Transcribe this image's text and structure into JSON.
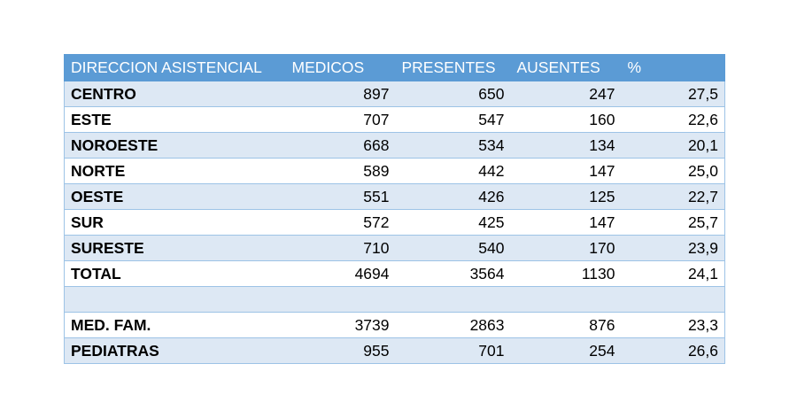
{
  "table": {
    "headers": [
      "DIRECCION ASISTENCIAL",
      "MEDICOS",
      "PRESENTES",
      "AUSENTES",
      "%"
    ],
    "rows": [
      [
        "CENTRO",
        "897",
        "650",
        "247",
        "27,5"
      ],
      [
        "ESTE",
        "707",
        "547",
        "160",
        "22,6"
      ],
      [
        "NOROESTE",
        "668",
        "534",
        "134",
        "20,1"
      ],
      [
        "NORTE",
        "589",
        "442",
        "147",
        "25,0"
      ],
      [
        "OESTE",
        "551",
        "426",
        "125",
        "22,7"
      ],
      [
        "SUR",
        "572",
        "425",
        "147",
        "25,7"
      ],
      [
        "SURESTE",
        "710",
        "540",
        "170",
        "23,9"
      ],
      [
        "TOTAL",
        "4694",
        "3564",
        "1130",
        "24,1"
      ],
      [
        "",
        "",
        "",
        "",
        ""
      ],
      [
        "MED. FAM.",
        "3739",
        "2863",
        "876",
        "23,3"
      ],
      [
        "PEDIATRAS",
        "955",
        "701",
        "254",
        "26,6"
      ]
    ]
  },
  "colors": {
    "header_bg": "#5b9bd5",
    "header_text": "#ffffff",
    "band_bg": "#dde8f4",
    "border": "#9dc3e6"
  }
}
